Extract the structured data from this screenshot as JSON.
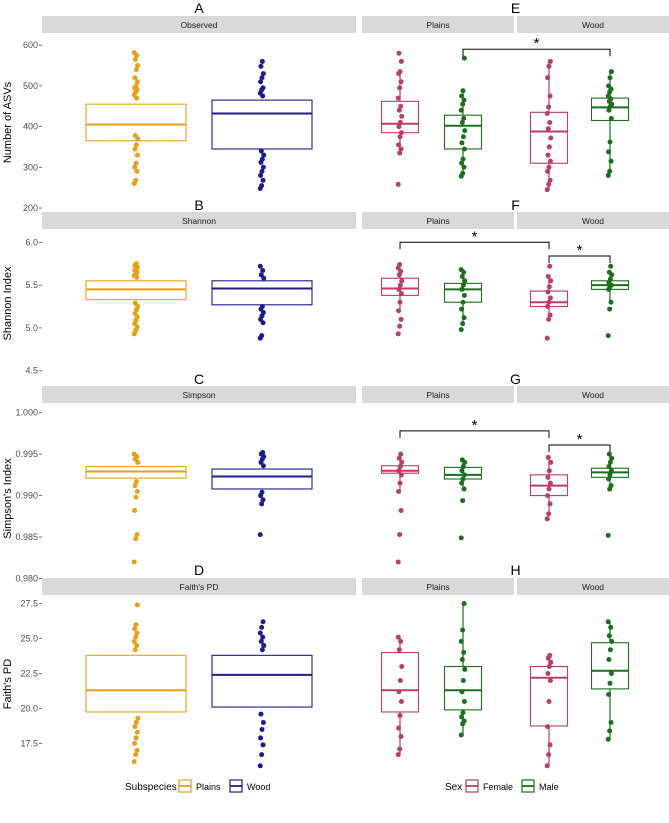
{
  "colors": {
    "plains": "#E6A116",
    "wood": "#1C1C8C",
    "female": "#B83E65",
    "male": "#1B6F1B",
    "strip_bg": "#D9D9D9",
    "gridline": "#EBEBEB"
  },
  "legends": {
    "subspecies": {
      "title": "Subspecies",
      "items": [
        {
          "label": "Plains",
          "color": "#E6A116"
        },
        {
          "label": "Wood",
          "color": "#1C1C8C"
        }
      ]
    },
    "sex": {
      "title": "Sex",
      "items": [
        {
          "label": "Female",
          "color": "#B83E65"
        },
        {
          "label": "Male",
          "color": "#1B6F1B"
        }
      ]
    }
  },
  "chart_data": [
    {
      "type": "box",
      "row": 0,
      "ylabel": "Number of ASVs",
      "ylim": [
        200,
        620
      ],
      "yticks": [
        200,
        300,
        400,
        500,
        600
      ],
      "tick_labels": [
        "200",
        "300",
        "400",
        "500",
        "600"
      ],
      "left": {
        "letter": "A",
        "strip": "Observed",
        "boxes": [
          {
            "group": "Plains",
            "color": "#E6A116",
            "q1": 365,
            "median": 405,
            "q3": 455,
            "whislo": 365,
            "whishi": 455,
            "points": [
              260,
              268,
              290,
              300,
              310,
              330,
              345,
              355,
              370,
              378,
              470,
              478,
              485,
              490,
              495,
              500,
              510,
              520,
              540,
              550,
              565,
              575,
              582
            ]
          },
          {
            "group": "Wood",
            "color": "#1C1C8C",
            "q1": 345,
            "median": 432,
            "q3": 465,
            "whislo": 345,
            "whishi": 465,
            "points": [
              248,
              255,
              268,
              280,
              290,
              300,
              312,
              320,
              330,
              340,
              475,
              482,
              490,
              495,
              510,
              520,
              530,
              548,
              560
            ]
          }
        ]
      },
      "right": {
        "letter": "E",
        "facets": [
          {
            "strip": "Plains",
            "boxes": [
              {
                "group": "Female",
                "color": "#B83E65",
                "q1": 385,
                "median": 407,
                "q3": 462,
                "whislo": 345,
                "whishi": 535,
                "points": [
                  258,
                  335,
                  345,
                  355,
                  375,
                  385,
                  400,
                  410,
                  425,
                  440,
                  450,
                  470,
                  495,
                  510,
                  530,
                  535,
                  560,
                  580
                ]
              },
              {
                "group": "Male",
                "color": "#1B6F1B",
                "q1": 345,
                "median": 402,
                "q3": 428,
                "whislo": 280,
                "whishi": 488,
                "points": [
                  278,
                  285,
                  300,
                  310,
                  320,
                  345,
                  360,
                  375,
                  390,
                  410,
                  420,
                  440,
                  455,
                  465,
                  475,
                  488,
                  568
                ]
              }
            ]
          },
          {
            "strip": "Wood",
            "boxes": [
              {
                "group": "Female",
                "color": "#B83E65",
                "q1": 310,
                "median": 388,
                "q3": 435,
                "whislo": 245,
                "whishi": 560,
                "points": [
                  245,
                  258,
                  268,
                  290,
                  300,
                  315,
                  330,
                  350,
                  372,
                  395,
                  410,
                  432,
                  448,
                  475,
                  520,
                  548,
                  560
                ]
              },
              {
                "group": "Male",
                "color": "#1B6F1B",
                "q1": 415,
                "median": 447,
                "q3": 470,
                "whislo": 285,
                "whishi": 535,
                "points": [
                  280,
                  290,
                  315,
                  338,
                  362,
                  420,
                  440,
                  450,
                  455,
                  462,
                  468,
                  475,
                  485,
                  492,
                  500,
                  520,
                  535
                ]
              }
            ]
          }
        ],
        "annotations": [
          {
            "from": [
              0,
              1
            ],
            "to": [
              1,
              1
            ],
            "y": 590,
            "label": "*"
          }
        ]
      }
    },
    {
      "type": "box",
      "row": 1,
      "ylabel": "Shannon Index",
      "ylim": [
        4.45,
        6.12
      ],
      "yticks": [
        4.5,
        5.0,
        5.5,
        6.0
      ],
      "tick_labels": [
        "4.5",
        "5.0",
        "5.5",
        "6.0"
      ],
      "left": {
        "letter": "B",
        "strip": "Shannon",
        "boxes": [
          {
            "group": "Plains",
            "color": "#E6A116",
            "q1": 5.33,
            "median": 5.45,
            "q3": 5.55,
            "whislo": 5.33,
            "whishi": 5.55,
            "points": [
              4.93,
              4.97,
              5.01,
              5.05,
              5.09,
              5.13,
              5.17,
              5.21,
              5.25,
              5.29,
              5.59,
              5.61,
              5.63,
              5.65,
              5.67,
              5.69,
              5.71,
              5.73,
              5.75
            ]
          },
          {
            "group": "Wood",
            "color": "#1C1C8C",
            "q1": 5.27,
            "median": 5.46,
            "q3": 5.55,
            "whislo": 5.27,
            "whishi": 5.55,
            "points": [
              4.88,
              4.91,
              5.06,
              5.1,
              5.14,
              5.18,
              5.22,
              5.25,
              5.58,
              5.62,
              5.67,
              5.72
            ]
          }
        ]
      },
      "right": {
        "letter": "F",
        "facets": [
          {
            "strip": "Plains",
            "boxes": [
              {
                "group": "Female",
                "color": "#B83E65",
                "q1": 5.38,
                "median": 5.46,
                "q3": 5.58,
                "whislo": 5.2,
                "whishi": 5.72,
                "points": [
                  4.93,
                  5.02,
                  5.1,
                  5.2,
                  5.3,
                  5.4,
                  5.45,
                  5.5,
                  5.55,
                  5.62,
                  5.66,
                  5.7,
                  5.74
                ]
              },
              {
                "group": "Male",
                "color": "#1B6F1B",
                "q1": 5.3,
                "median": 5.45,
                "q3": 5.52,
                "whislo": 5.05,
                "whishi": 5.68,
                "points": [
                  4.98,
                  5.05,
                  5.12,
                  5.22,
                  5.3,
                  5.38,
                  5.45,
                  5.5,
                  5.55,
                  5.6,
                  5.65,
                  5.68
                ]
              }
            ]
          },
          {
            "strip": "Wood",
            "boxes": [
              {
                "group": "Female",
                "color": "#B83E65",
                "q1": 5.25,
                "median": 5.3,
                "q3": 5.43,
                "whislo": 5.1,
                "whishi": 5.6,
                "points": [
                  4.88,
                  5.1,
                  5.15,
                  5.25,
                  5.3,
                  5.35,
                  5.42,
                  5.48,
                  5.55,
                  5.6,
                  5.72
                ]
              },
              {
                "group": "Male",
                "color": "#1B6F1B",
                "q1": 5.45,
                "median": 5.5,
                "q3": 5.55,
                "whislo": 5.3,
                "whishi": 5.65,
                "points": [
                  4.91,
                  5.22,
                  5.3,
                  5.45,
                  5.48,
                  5.5,
                  5.53,
                  5.57,
                  5.62,
                  5.65,
                  5.72
                ]
              }
            ]
          }
        ],
        "annotations": [
          {
            "from": [
              0,
              0
            ],
            "to": [
              1,
              0
            ],
            "y": 6.0,
            "label": "*"
          },
          {
            "from": [
              1,
              0
            ],
            "to": [
              1,
              1
            ],
            "y": 5.84,
            "label": "*"
          }
        ]
      }
    },
    {
      "type": "box",
      "row": 2,
      "ylabel": "Simpson's Index",
      "ylim": [
        0.9785,
        1.0008
      ],
      "yticks": [
        0.98,
        0.985,
        0.99,
        0.995,
        1.0
      ],
      "tick_labels": [
        "0.980",
        "0.985",
        "0.990",
        "0.995",
        "1.000"
      ],
      "left": {
        "letter": "C",
        "strip": "Simpson",
        "boxes": [
          {
            "group": "Plains",
            "color": "#E6A116",
            "q1": 0.9921,
            "median": 0.9929,
            "q3": 0.9935,
            "whislo": 0.9921,
            "whishi": 0.9935,
            "points": [
              0.982,
              0.9848,
              0.9853,
              0.9882,
              0.9898,
              0.9905,
              0.9912,
              0.9917,
              0.994,
              0.9944,
              0.9947,
              0.995
            ]
          },
          {
            "group": "Wood",
            "color": "#1C1C8C",
            "q1": 0.9908,
            "median": 0.9923,
            "q3": 0.9932,
            "whislo": 0.9908,
            "whishi": 0.9932,
            "points": [
              0.9853,
              0.989,
              0.9895,
              0.99,
              0.9904,
              0.9936,
              0.994,
              0.9944,
              0.9947,
              0.995,
              0.9952
            ]
          }
        ]
      },
      "right": {
        "letter": "G",
        "facets": [
          {
            "strip": "Plains",
            "boxes": [
              {
                "group": "Female",
                "color": "#B83E65",
                "q1": 0.9927,
                "median": 0.993,
                "q3": 0.9936,
                "whislo": 0.9905,
                "whishi": 0.995,
                "points": [
                  0.982,
                  0.9853,
                  0.9882,
                  0.9905,
                  0.9915,
                  0.9925,
                  0.993,
                  0.9935,
                  0.994,
                  0.9945,
                  0.995
                ]
              },
              {
                "group": "Male",
                "color": "#1B6F1B",
                "q1": 0.992,
                "median": 0.9925,
                "q3": 0.9934,
                "whislo": 0.9908,
                "whishi": 0.9943,
                "points": [
                  0.9849,
                  0.9894,
                  0.9908,
                  0.9915,
                  0.992,
                  0.9925,
                  0.993,
                  0.9935,
                  0.994,
                  0.9943
                ]
              }
            ]
          },
          {
            "strip": "Wood",
            "boxes": [
              {
                "group": "Female",
                "color": "#B83E65",
                "q1": 0.99,
                "median": 0.9912,
                "q3": 0.9925,
                "whislo": 0.9875,
                "whishi": 0.9946,
                "points": [
                  0.9872,
                  0.9878,
                  0.989,
                  0.99,
                  0.9908,
                  0.9915,
                  0.9922,
                  0.993,
                  0.994,
                  0.9946
                ]
              },
              {
                "group": "Male",
                "color": "#1B6F1B",
                "q1": 0.9922,
                "median": 0.9928,
                "q3": 0.9933,
                "whislo": 0.9908,
                "whishi": 0.995,
                "points": [
                  0.9852,
                  0.9908,
                  0.9912,
                  0.992,
                  0.9925,
                  0.993,
                  0.9935,
                  0.994,
                  0.9945,
                  0.995
                ]
              }
            ]
          }
        ],
        "annotations": [
          {
            "from": [
              0,
              0
            ],
            "to": [
              1,
              0
            ],
            "y": 0.9978,
            "label": "*"
          },
          {
            "from": [
              1,
              0
            ],
            "to": [
              1,
              1
            ],
            "y": 0.9961,
            "label": "*"
          }
        ]
      }
    },
    {
      "type": "box",
      "row": 3,
      "ylabel": "Faith's PD",
      "ylim": [
        15.6,
        27.9
      ],
      "yticks": [
        17.5,
        20.0,
        22.5,
        25.0,
        27.5
      ],
      "tick_labels": [
        "17.5",
        "20.0",
        "22.5",
        "25.0",
        "27.5"
      ],
      "left": {
        "letter": "D",
        "strip": "Faith's PD",
        "boxes": [
          {
            "group": "Plains",
            "color": "#E6A116",
            "q1": 19.75,
            "median": 21.3,
            "q3": 23.8,
            "whislo": 19.75,
            "whishi": 23.8,
            "points": [
              16.2,
              16.7,
              17.0,
              17.5,
              17.9,
              18.3,
              18.7,
              19.0,
              19.3,
              24.2,
              24.5,
              24.8,
              25.1,
              25.4,
              25.7,
              26.0,
              27.4
            ]
          },
          {
            "group": "Wood",
            "color": "#1C1C8C",
            "q1": 20.1,
            "median": 22.4,
            "q3": 23.8,
            "whislo": 20.1,
            "whishi": 23.8,
            "points": [
              15.9,
              16.7,
              17.4,
              17.9,
              18.5,
              19.0,
              19.6,
              24.2,
              24.5,
              24.8,
              25.1,
              25.4,
              25.8,
              26.2
            ]
          }
        ]
      },
      "right": {
        "letter": "H",
        "facets": [
          {
            "strip": "Plains",
            "boxes": [
              {
                "group": "Female",
                "color": "#B83E65",
                "q1": 19.75,
                "median": 21.3,
                "q3": 24.0,
                "whislo": 16.7,
                "whishi": 25.1,
                "points": [
                  16.7,
                  17.1,
                  18.0,
                  18.6,
                  19.5,
                  20.5,
                  21.2,
                  22.0,
                  23.0,
                  24.2,
                  24.8,
                  25.1
                ]
              },
              {
                "group": "Male",
                "color": "#1B6F1B",
                "q1": 19.9,
                "median": 21.3,
                "q3": 23.0,
                "whislo": 18.1,
                "whishi": 27.5,
                "points": [
                  18.1,
                  18.9,
                  19.1,
                  19.4,
                  19.7,
                  20.5,
                  21.2,
                  22.0,
                  22.8,
                  23.5,
                  24.0,
                  24.8,
                  25.6,
                  27.5
                ]
              }
            ]
          },
          {
            "strip": "Wood",
            "boxes": [
              {
                "group": "Female",
                "color": "#B83E65",
                "q1": 18.75,
                "median": 22.2,
                "q3": 23.0,
                "whislo": 15.9,
                "whishi": 23.8,
                "points": [
                  15.9,
                  16.7,
                  17.4,
                  18.7,
                  20.5,
                  22.0,
                  22.5,
                  23.0,
                  23.3,
                  23.6,
                  23.8
                ]
              },
              {
                "group": "Male",
                "color": "#1B6F1B",
                "q1": 21.4,
                "median": 22.7,
                "q3": 24.7,
                "whislo": 17.8,
                "whishi": 26.2,
                "points": [
                  17.8,
                  18.4,
                  19.0,
                  21.0,
                  21.8,
                  22.5,
                  23.5,
                  24.2,
                  24.8,
                  25.2,
                  25.8,
                  26.2
                ]
              }
            ]
          }
        ],
        "annotations": []
      }
    }
  ]
}
